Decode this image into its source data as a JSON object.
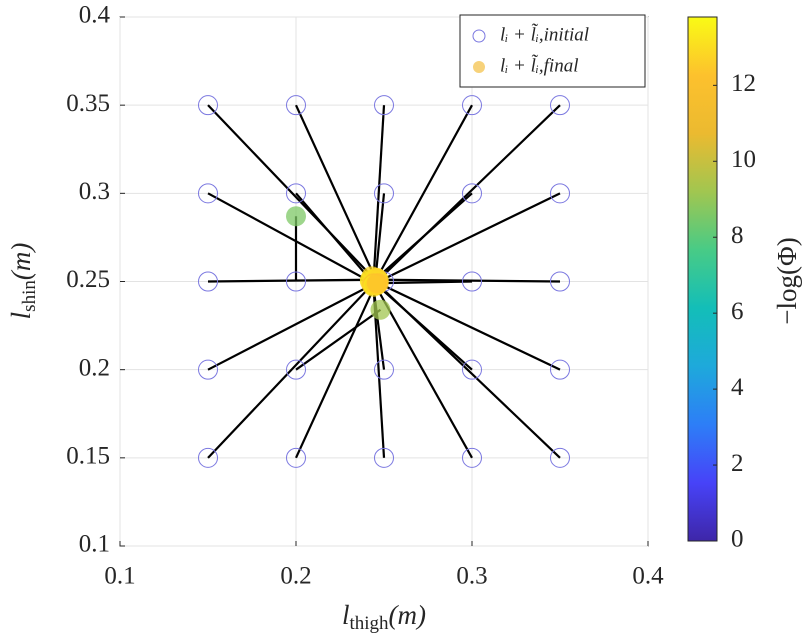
{
  "chart_data": {
    "type": "scatter",
    "xlabel": {
      "main": "l",
      "sub": "thigh",
      "tail": "(m)"
    },
    "ylabel": {
      "main": "l",
      "sub": "shin",
      "tail": "(m)"
    },
    "xlim": [
      0.1,
      0.4
    ],
    "xticks": [
      0.1,
      0.2,
      0.3,
      0.4
    ],
    "ylim": [
      0.1,
      0.4
    ],
    "yticks": [
      0.1,
      0.15,
      0.2,
      0.25,
      0.3,
      0.35,
      0.4
    ],
    "grid": true,
    "legend": "top-right",
    "connections": true,
    "series": [
      {
        "name": "lᵢ + l̃ᵢ,initial",
        "color": "#7b78e0",
        "x": [
          0.15,
          0.2,
          0.25,
          0.3,
          0.35,
          0.15,
          0.2,
          0.25,
          0.3,
          0.35,
          0.15,
          0.2,
          0.25,
          0.3,
          0.35,
          0.15,
          0.2,
          0.25,
          0.3,
          0.35,
          0.15,
          0.2,
          0.25,
          0.3,
          0.35
        ],
        "y": [
          0.35,
          0.35,
          0.35,
          0.35,
          0.35,
          0.3,
          0.3,
          0.3,
          0.3,
          0.3,
          0.25,
          0.25,
          0.25,
          0.25,
          0.25,
          0.2,
          0.2,
          0.2,
          0.2,
          0.2,
          0.15,
          0.15,
          0.15,
          0.15,
          0.15
        ]
      },
      {
        "name": "lᵢ + l̃ᵢ,final",
        "color": "#f7d27a",
        "x": [
          0.243,
          0.245,
          0.244,
          0.246,
          0.247,
          0.242,
          0.244,
          0.245,
          0.246,
          0.247,
          0.242,
          0.2,
          0.246,
          0.245,
          0.246,
          0.243,
          0.248,
          0.244,
          0.246,
          0.247,
          0.244,
          0.245,
          0.244,
          0.245,
          0.246
        ],
        "y": [
          0.253,
          0.252,
          0.25,
          0.252,
          0.251,
          0.25,
          0.249,
          0.25,
          0.252,
          0.25,
          0.251,
          0.287,
          0.248,
          0.249,
          0.251,
          0.248,
          0.234,
          0.247,
          0.248,
          0.249,
          0.249,
          0.248,
          0.248,
          0.248,
          0.249
        ],
        "values": [
          12.8,
          13.0,
          13.2,
          12.9,
          12.6,
          13.1,
          13.3,
          13.5,
          12.7,
          12.9,
          13.0,
          8.6,
          13.4,
          13.1,
          12.8,
          12.5,
          9.2,
          13.0,
          12.6,
          12.4,
          12.2,
          12.9,
          13.3,
          12.7,
          12.3
        ]
      }
    ],
    "colorbar": {
      "label": "−log(Φ)",
      "clim": [
        0,
        13.8
      ],
      "ticks": [
        0,
        2,
        4,
        6,
        8,
        10,
        12
      ],
      "colormap": [
        "#3e26a8",
        "#4743f8",
        "#2d7ef7",
        "#1ea9db",
        "#13beb8",
        "#48cb86",
        "#a1c650",
        "#ebba30",
        "#fdc12d",
        "#f9fb15"
      ]
    }
  }
}
